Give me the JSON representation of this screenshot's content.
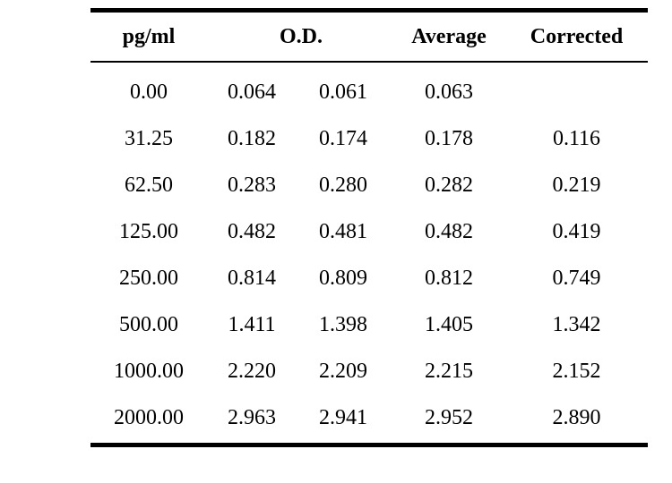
{
  "table": {
    "headers": {
      "pg": "pg/ml",
      "od": "O.D.",
      "average": "Average",
      "corrected": "Corrected"
    },
    "rows": [
      {
        "pg": "0.00",
        "od1": "0.064",
        "od2": "0.061",
        "average": "0.063",
        "corrected": ""
      },
      {
        "pg": "31.25",
        "od1": "0.182",
        "od2": "0.174",
        "average": "0.178",
        "corrected": "0.116"
      },
      {
        "pg": "62.50",
        "od1": "0.283",
        "od2": "0.280",
        "average": "0.282",
        "corrected": "0.219"
      },
      {
        "pg": "125.00",
        "od1": "0.482",
        "od2": "0.481",
        "average": "0.482",
        "corrected": "0.419"
      },
      {
        "pg": "250.00",
        "od1": "0.814",
        "od2": "0.809",
        "average": "0.812",
        "corrected": "0.749"
      },
      {
        "pg": "500.00",
        "od1": "1.411",
        "od2": "1.398",
        "average": "1.405",
        "corrected": "1.342"
      },
      {
        "pg": "1000.00",
        "od1": "2.220",
        "od2": "2.209",
        "average": "2.215",
        "corrected": "2.152"
      },
      {
        "pg": "2000.00",
        "od1": "2.963",
        "od2": "2.941",
        "average": "2.952",
        "corrected": "2.890"
      }
    ]
  }
}
